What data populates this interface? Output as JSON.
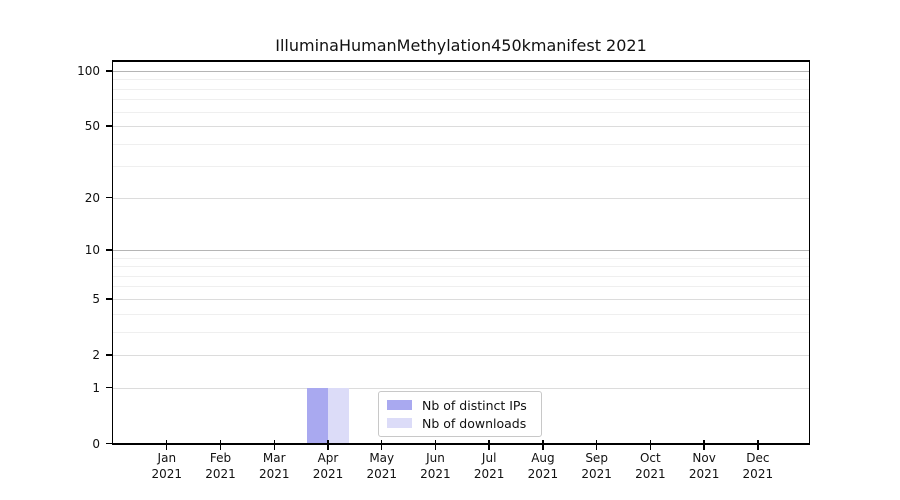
{
  "title": "IlluminaHumanMethylation450kmanifest 2021",
  "colors": {
    "ips_bar": "#a9a9f0",
    "downloads_bar": "#dcdcf8",
    "grid_decade": "#b5b5b5",
    "grid_major": "#dcdcdc",
    "grid_minor": "#efefef",
    "axis": "#000000",
    "text": "#111111"
  },
  "x_axis": {
    "months": [
      "Jan",
      "Feb",
      "Mar",
      "Apr",
      "May",
      "Jun",
      "Jul",
      "Aug",
      "Sep",
      "Oct",
      "Nov",
      "Dec"
    ],
    "year": "2021"
  },
  "legend": {
    "items": [
      {
        "label": "Nb of distinct IPs",
        "color_key": "ips_bar"
      },
      {
        "label": "Nb of downloads",
        "color_key": "downloads_bar"
      }
    ]
  },
  "chart_data": {
    "type": "bar",
    "title": "IlluminaHumanMethylation450kmanifest 2021",
    "categories": [
      "Jan 2021",
      "Feb 2021",
      "Mar 2021",
      "Apr 2021",
      "May 2021",
      "Jun 2021",
      "Jul 2021",
      "Aug 2021",
      "Sep 2021",
      "Oct 2021",
      "Nov 2021",
      "Dec 2021"
    ],
    "series": [
      {
        "name": "Nb of distinct IPs",
        "values": [
          0,
          0,
          0,
          1,
          0,
          0,
          0,
          0,
          0,
          0,
          0,
          0
        ],
        "color": "#a9a9f0"
      },
      {
        "name": "Nb of downloads",
        "values": [
          0,
          0,
          0,
          1,
          0,
          0,
          0,
          0,
          0,
          0,
          0,
          0
        ],
        "color": "#dcdcf8"
      }
    ],
    "xlabel": "",
    "ylabel": "",
    "y_scale": "log1p",
    "y_major_ticks": [
      0,
      1,
      2,
      5,
      10,
      20,
      50,
      100
    ],
    "y_minor_ticks": [
      3,
      4,
      6,
      7,
      8,
      9,
      30,
      40,
      60,
      70,
      80,
      90
    ],
    "y_decade_lines": [
      10,
      100
    ],
    "ylim": [
      0,
      115
    ],
    "grid": "horizontal",
    "legend_position": "lower center"
  }
}
